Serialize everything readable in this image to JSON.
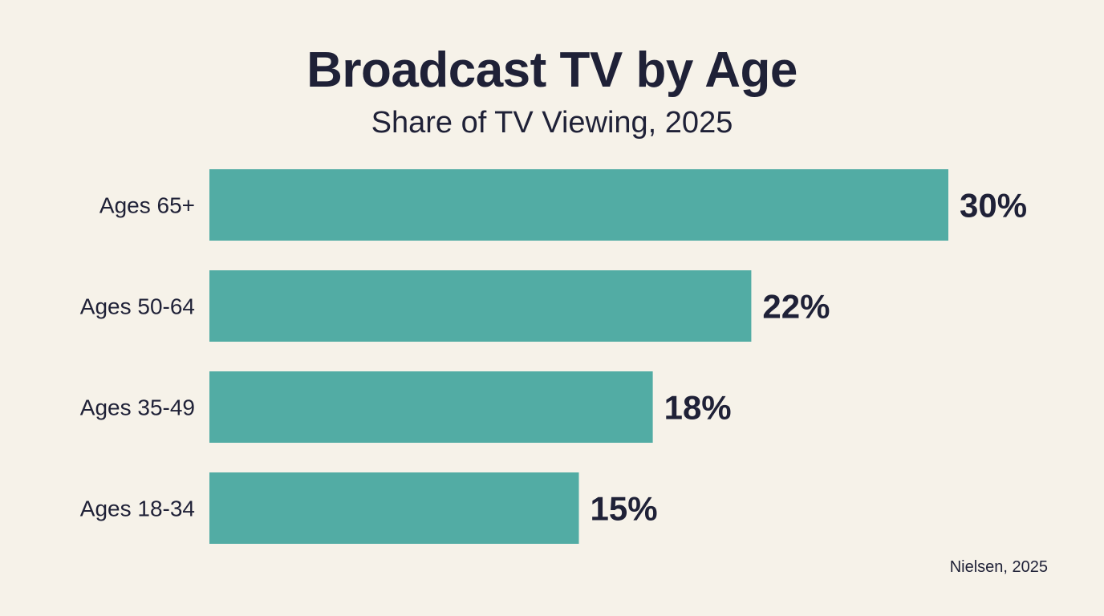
{
  "chart_data": {
    "type": "bar",
    "orientation": "horizontal",
    "title": "Broadcast TV by Age",
    "subtitle": "Share of TV Viewing, 2025",
    "categories": [
      "Ages 65+",
      "Ages 50-64",
      "Ages 35-49",
      "Ages 18-34"
    ],
    "values": [
      30,
      22,
      18,
      15
    ],
    "data_labels": [
      "30%",
      "22%",
      "18%",
      "15%"
    ],
    "xlim": [
      0,
      30
    ],
    "grid": false,
    "source": "Nielsen, 2025",
    "colors": {
      "bar": "#52aca4",
      "text": "#1f2137",
      "background": "#f6f2e9"
    }
  }
}
